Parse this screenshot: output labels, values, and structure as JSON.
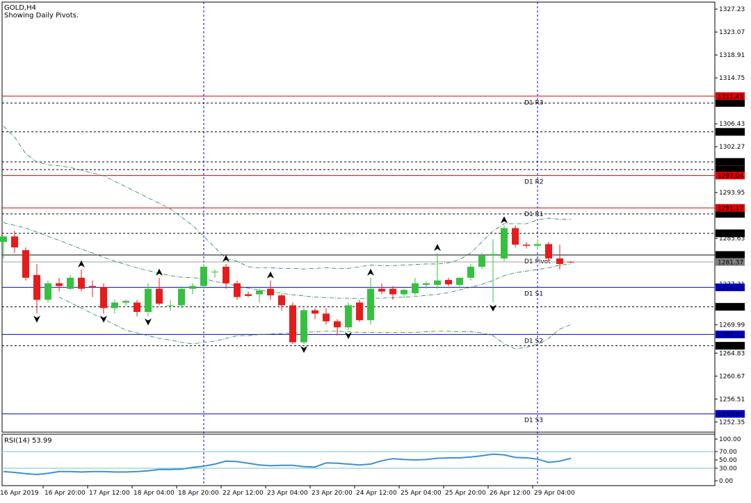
{
  "chart_data": {
    "type": "candlestick",
    "symbol_label": "GOLD,H4",
    "subtitle": "Showing Daily Pivots.",
    "price_axis": {
      "min": 1250.5,
      "max": 1328.5,
      "ticks": [
        "1327.23",
        "1323.07",
        "1318.91",
        "1314.75",
        "1306.43",
        "1302.27",
        "1293.95",
        "1285.63",
        "1277.31",
        "1269.99",
        "1264.83",
        "1260.67",
        "1256.51",
        "1252.35"
      ]
    },
    "pivots": [
      {
        "name": "D1 R3",
        "value": 1311.45,
        "label": "1311.45",
        "color": "#e00000"
      },
      {
        "name": "D1 R2",
        "value": 1297.04,
        "label": "1297.04",
        "color": "#e00000"
      },
      {
        "name": "D1 R1",
        "value": 1291.17,
        "label": "1291.17",
        "color": "#e00000"
      },
      {
        "name": "D1 Pivot",
        "value": 1282.63,
        "label": "1282.63",
        "color": "#000000"
      },
      {
        "name": "D1 S1",
        "value": 1276.76,
        "label": "1276.76",
        "color": "#0000cc"
      },
      {
        "name": "D1 S2",
        "value": 1268.22,
        "label": "1268.22",
        "color": "#0000cc"
      },
      {
        "name": "D1 S3",
        "value": 1253.81,
        "label": "1253.81",
        "color": "#0000cc"
      }
    ],
    "dashed_levels": [
      {
        "value": 1310.2,
        "label": "1310.20"
      },
      {
        "value": 1304.96,
        "label": "1304.96"
      },
      {
        "value": 1299.51,
        "label": "1299.51"
      },
      {
        "value": 1298.11,
        "label": "1298.11"
      },
      {
        "value": 1290.09,
        "label": "1290.09"
      },
      {
        "value": 1286.56,
        "label": "1286.56"
      },
      {
        "value": 1273.23,
        "label": "1273.23"
      },
      {
        "value": 1266.17,
        "label": "1266.17"
      }
    ],
    "current_price": {
      "value": 1281.37,
      "label": "1281.37"
    },
    "time_labels": [
      "16 Apr 2019",
      "16 Apr 20:00",
      "17 Apr 12:00",
      "18 Apr 04:00",
      "18 Apr 20:00",
      "22 Apr 12:00",
      "23 Apr 04:00",
      "23 Apr 20:00",
      "24 Apr 12:00",
      "25 Apr 04:00",
      "25 Apr 20:00",
      "26 Apr 12:00",
      "29 Apr 04:00"
    ],
    "day_separators": [
      18,
      48
    ],
    "candles": [
      {
        "o": 1285,
        "h": 1286,
        "l": 1282,
        "c": 1286
      },
      {
        "o": 1286,
        "h": 1287,
        "l": 1283,
        "c": 1284
      },
      {
        "o": 1283.5,
        "h": 1284,
        "l": 1278,
        "c": 1278.5
      },
      {
        "o": 1279,
        "h": 1281,
        "l": 1272,
        "c": 1274.5
      },
      {
        "o": 1274.5,
        "h": 1278,
        "l": 1274,
        "c": 1277.5
      },
      {
        "o": 1277.5,
        "h": 1278.5,
        "l": 1276,
        "c": 1277
      },
      {
        "o": 1276.5,
        "h": 1279,
        "l": 1276.3,
        "c": 1278.5
      },
      {
        "o": 1278.5,
        "h": 1280,
        "l": 1276,
        "c": 1276.5
      },
      {
        "o": 1277,
        "h": 1278,
        "l": 1275,
        "c": 1276.8
      },
      {
        "o": 1276.8,
        "h": 1277.5,
        "l": 1272,
        "c": 1273
      },
      {
        "o": 1273,
        "h": 1274.5,
        "l": 1272,
        "c": 1274
      },
      {
        "o": 1274,
        "h": 1274.5,
        "l": 1273.4,
        "c": 1274.3
      },
      {
        "o": 1274,
        "h": 1274.5,
        "l": 1271.5,
        "c": 1272.3
      },
      {
        "o": 1272.3,
        "h": 1277.5,
        "l": 1271.5,
        "c": 1276.5
      },
      {
        "o": 1276.5,
        "h": 1278.5,
        "l": 1273.5,
        "c": 1273.8
      },
      {
        "o": 1273.5,
        "h": 1274.5,
        "l": 1272.5,
        "c": 1273.5
      },
      {
        "o": 1273.5,
        "h": 1277,
        "l": 1273,
        "c": 1276.5
      },
      {
        "o": 1276.5,
        "h": 1277.5,
        "l": 1275.5,
        "c": 1277
      },
      {
        "o": 1277,
        "h": 1281,
        "l": 1276.5,
        "c": 1280.5
      },
      {
        "o": 1279.5,
        "h": 1280,
        "l": 1278.5,
        "c": 1279.6
      },
      {
        "o": 1280.5,
        "h": 1281,
        "l": 1276.5,
        "c": 1277.5
      },
      {
        "o": 1277.5,
        "h": 1278,
        "l": 1274.5,
        "c": 1275
      },
      {
        "o": 1275.5,
        "h": 1276,
        "l": 1275,
        "c": 1275.2
      },
      {
        "o": 1275.5,
        "h": 1276.5,
        "l": 1274,
        "c": 1276.2
      },
      {
        "o": 1276.5,
        "h": 1278,
        "l": 1274.5,
        "c": 1275.3
      },
      {
        "o": 1275.3,
        "h": 1275.5,
        "l": 1272.5,
        "c": 1273.5
      },
      {
        "o": 1273.5,
        "h": 1274,
        "l": 1266.5,
        "c": 1266.8
      },
      {
        "o": 1266.8,
        "h": 1273,
        "l": 1266.5,
        "c": 1272.6
      },
      {
        "o": 1272.6,
        "h": 1273,
        "l": 1271,
        "c": 1272
      },
      {
        "o": 1272,
        "h": 1273,
        "l": 1270,
        "c": 1270.6
      },
      {
        "o": 1270.6,
        "h": 1271,
        "l": 1268,
        "c": 1269.5
      },
      {
        "o": 1269.5,
        "h": 1274,
        "l": 1269,
        "c": 1273.5
      },
      {
        "o": 1274,
        "h": 1274.5,
        "l": 1270.5,
        "c": 1270.8
      },
      {
        "o": 1270.8,
        "h": 1278.5,
        "l": 1270,
        "c": 1276.5
      },
      {
        "o": 1276.5,
        "h": 1277.5,
        "l": 1275.5,
        "c": 1276
      },
      {
        "o": 1276.5,
        "h": 1277,
        "l": 1274.5,
        "c": 1275.5
      },
      {
        "o": 1275.5,
        "h": 1276.5,
        "l": 1274.8,
        "c": 1276.3
      },
      {
        "o": 1275.7,
        "h": 1278.5,
        "l": 1275.3,
        "c": 1277.5
      },
      {
        "o": 1277.2,
        "h": 1277.8,
        "l": 1276.5,
        "c": 1277.5
      },
      {
        "o": 1277.2,
        "h": 1283,
        "l": 1276.5,
        "c": 1278
      },
      {
        "o": 1278.1,
        "h": 1278.5,
        "l": 1277,
        "c": 1277.3
      },
      {
        "o": 1277.2,
        "h": 1278.5,
        "l": 1276.6,
        "c": 1278.5
      },
      {
        "o": 1278.5,
        "h": 1281,
        "l": 1278,
        "c": 1280.5
      },
      {
        "o": 1280.5,
        "h": 1283,
        "l": 1280,
        "c": 1282.5
      },
      {
        "o": 1282.5,
        "h": 1285.5,
        "l": 1274,
        "c": 1282.8
      },
      {
        "o": 1282,
        "h": 1288,
        "l": 1281.5,
        "c": 1287.5
      },
      {
        "o": 1287.5,
        "h": 1288,
        "l": 1284,
        "c": 1284.5
      },
      {
        "o": 1284.5,
        "h": 1285,
        "l": 1283.8,
        "c": 1284.3
      },
      {
        "o": 1284.3,
        "h": 1285.5,
        "l": 1283.5,
        "c": 1284.6
      },
      {
        "o": 1284.6,
        "h": 1285,
        "l": 1281.5,
        "c": 1282
      },
      {
        "o": 1282,
        "h": 1284.5,
        "l": 1280,
        "c": 1281
      },
      {
        "o": 1281.4,
        "h": 1281.5,
        "l": 1281.2,
        "c": 1281.37
      }
    ],
    "fractals": [
      {
        "i": 3,
        "dir": "down"
      },
      {
        "i": 7,
        "dir": "up"
      },
      {
        "i": 9,
        "dir": "down"
      },
      {
        "i": 13,
        "dir": "down"
      },
      {
        "i": 14,
        "dir": "up"
      },
      {
        "i": 20,
        "dir": "up"
      },
      {
        "i": 24,
        "dir": "up"
      },
      {
        "i": 27,
        "dir": "down"
      },
      {
        "i": 31,
        "dir": "down"
      },
      {
        "i": 33,
        "dir": "up"
      },
      {
        "i": 39,
        "dir": "up"
      },
      {
        "i": 44,
        "dir": "down"
      },
      {
        "i": 45,
        "dir": "up"
      }
    ],
    "bands": {
      "upper": [
        1306,
        1304,
        1301,
        1299.5,
        1299,
        1298.8,
        1298.5,
        1298,
        1297.5,
        1297,
        1296,
        1295,
        1294,
        1293,
        1292,
        1291,
        1289.5,
        1288,
        1286,
        1284,
        1282,
        1281.5,
        1280.5,
        1280.3,
        1280.3,
        1280.2,
        1280.2,
        1280.1,
        1280.2,
        1280.3,
        1280.2,
        1280.2,
        1280.5,
        1280.8,
        1280.7,
        1280.7,
        1280.8,
        1280.9,
        1281,
        1281,
        1281.2,
        1281.8,
        1283,
        1285,
        1287,
        1288.3,
        1288.3,
        1288.3,
        1289,
        1289.3,
        1289.1,
        1289.1
      ],
      "middle": [
        1288.5,
        1288,
        1287.5,
        1286.8,
        1286,
        1285.3,
        1284.5,
        1283.7,
        1283,
        1282.2,
        1281.5,
        1280.9,
        1280.3,
        1279.8,
        1279.3,
        1278.9,
        1278.6,
        1278.5,
        1278.4,
        1277.8,
        1277.5,
        1277,
        1276.6,
        1276.3,
        1276,
        1275.7,
        1275.4,
        1275.2,
        1275,
        1274.9,
        1274.8,
        1274.8,
        1274.7,
        1274.8,
        1274.8,
        1274.9,
        1275,
        1275.1,
        1275.3,
        1275.5,
        1275.8,
        1276.3,
        1276.8,
        1277.3,
        1278,
        1278.9,
        1279.4,
        1279.7,
        1280,
        1280.3,
        1280.8,
        1281
      ],
      "lower": [
        null,
        null,
        null,
        null,
        null,
        1275,
        1274,
        1273,
        1272,
        1271,
        1270,
        1269,
        1268.5,
        1268,
        1267.5,
        1267.2,
        1266.8,
        1266.5,
        1266.8,
        1267,
        1267.5,
        1268,
        1268,
        1268.2,
        1268.3,
        1268.4,
        1268.5,
        1268.6,
        1268.7,
        1268.8,
        1268.8,
        1268.7,
        1268.6,
        1268.6,
        1268.6,
        1268.6,
        1268.6,
        1268.6,
        1268.7,
        1268.8,
        1268.8,
        1268.7,
        1268.7,
        1268.5,
        1268,
        1266.5,
        1265.6,
        1265.9,
        1266.4,
        1267.5,
        1269.2,
        1270
      ]
    },
    "rsi": {
      "label": "RSI(14) 53.99",
      "ticks": [
        "100.00",
        "70.00",
        "50.00",
        "30.00",
        "0.00"
      ],
      "levels": [
        70,
        30
      ],
      "values": [
        22,
        20,
        17,
        15,
        18,
        22,
        22,
        21,
        22,
        22,
        21,
        21,
        22,
        24,
        27,
        27,
        28,
        32,
        35,
        40,
        47,
        46,
        42,
        38,
        36,
        37,
        37,
        34,
        33,
        43,
        42,
        40,
        38,
        40,
        48,
        53,
        51,
        50,
        51,
        54,
        55,
        55,
        57,
        60,
        64,
        62,
        56,
        55,
        52,
        44,
        47,
        54
      ]
    }
  }
}
